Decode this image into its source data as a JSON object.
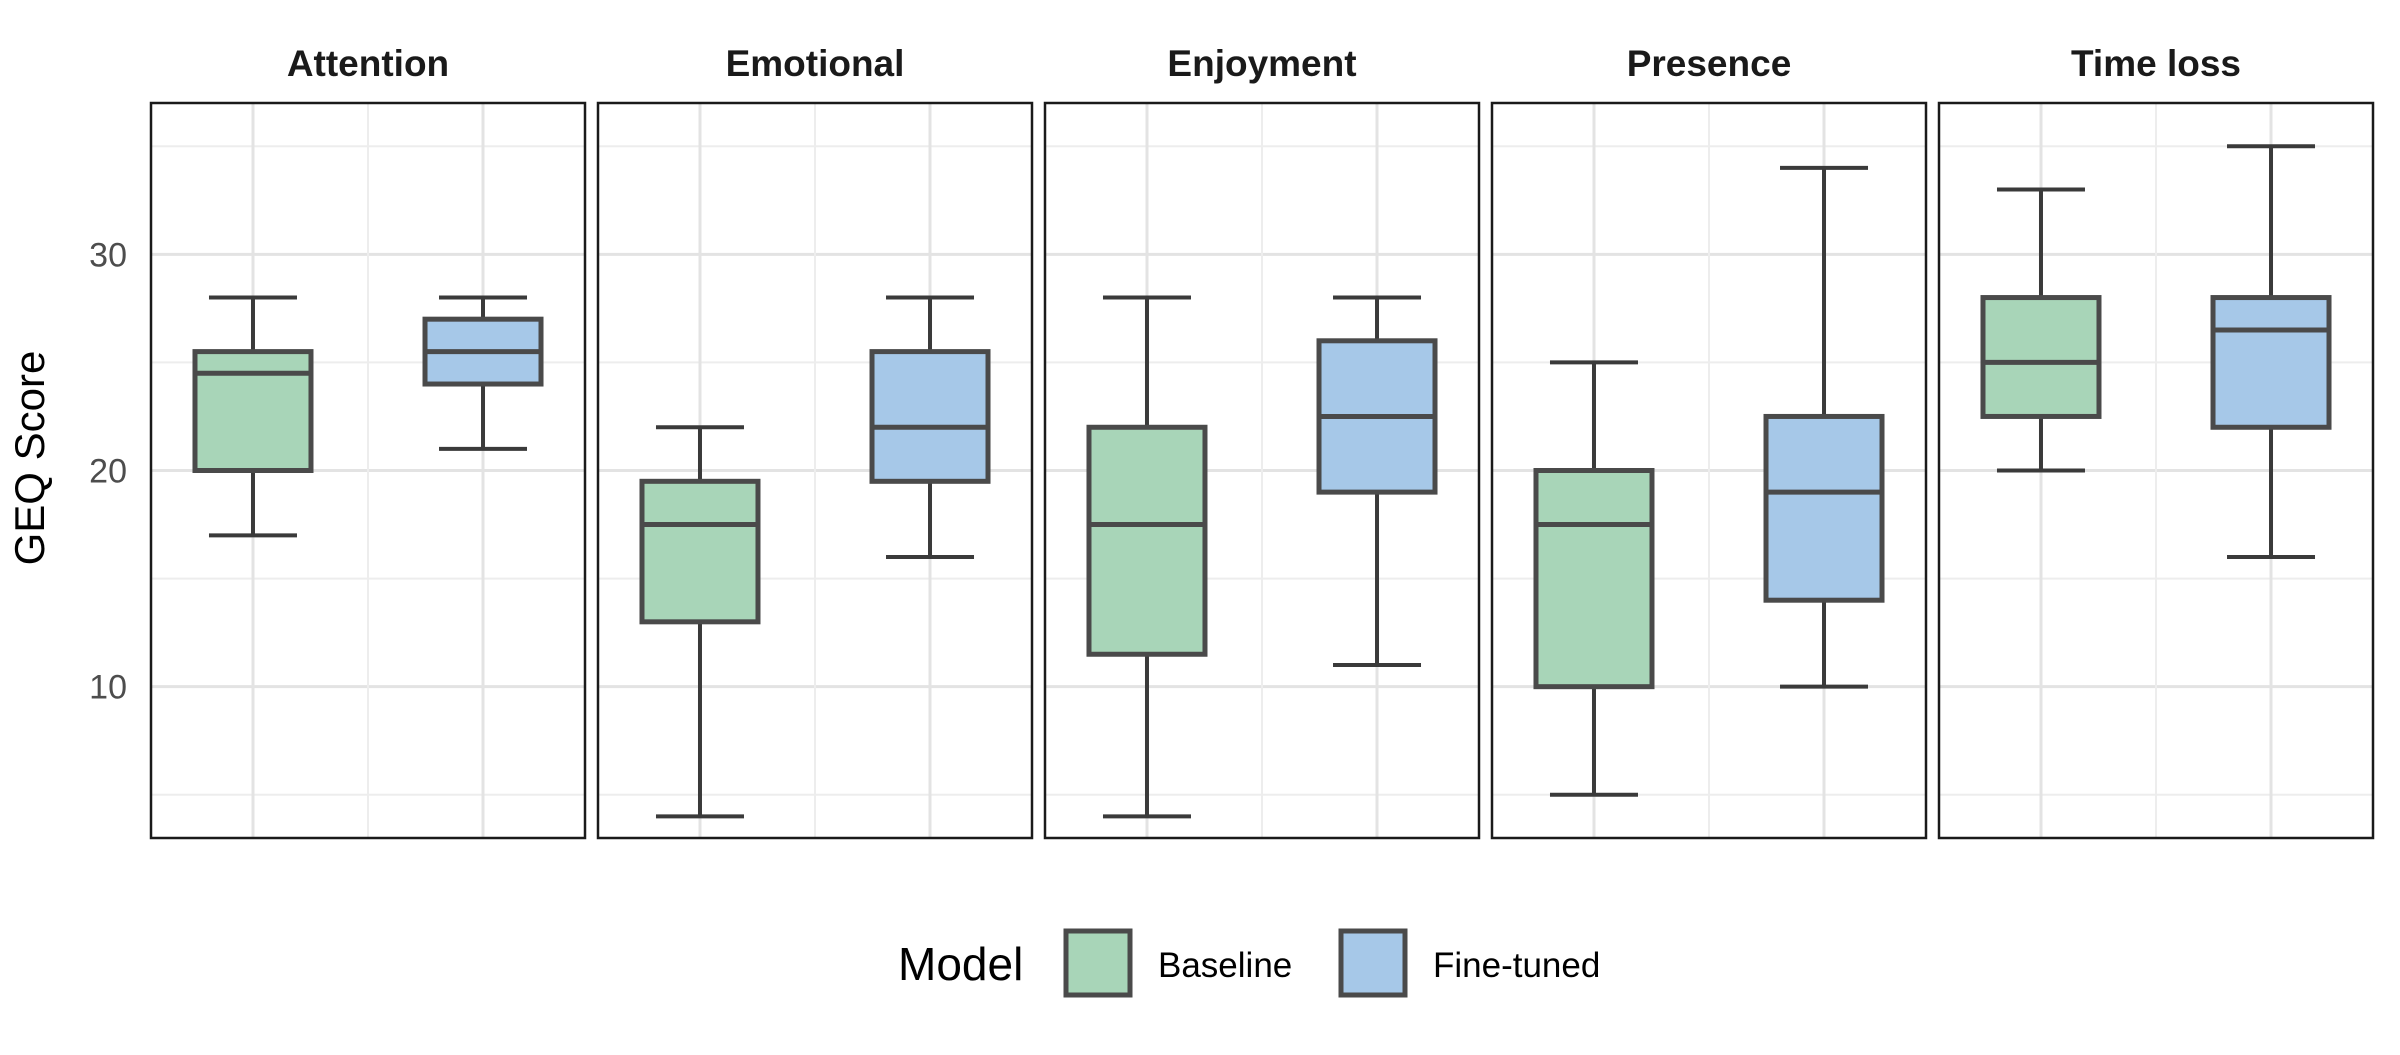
{
  "chart_data": {
    "type": "boxplot",
    "facets": [
      "Attention",
      "Emotional",
      "Enjoyment",
      "Presence",
      "Time loss"
    ],
    "groups": [
      "Baseline",
      "Fine-tuned"
    ],
    "ylabel": "GEQ Score",
    "xlabel": "",
    "ylim": [
      3,
      37
    ],
    "y_ticks": [
      10,
      20,
      30
    ],
    "grid": true,
    "legend": {
      "title": "Model",
      "position": "bottom"
    },
    "colors": {
      "Baseline": "#a8d5b8",
      "Fine-tuned": "#a6c8e8",
      "outline": "#4a4a4a"
    },
    "boxes": [
      {
        "facet": "Attention",
        "group": "Baseline",
        "whisker_low": 17,
        "q1": 20,
        "median": 24.5,
        "q3": 25.5,
        "whisker_high": 28
      },
      {
        "facet": "Attention",
        "group": "Fine-tuned",
        "whisker_low": 21,
        "q1": 24,
        "median": 25.5,
        "q3": 27,
        "whisker_high": 28
      },
      {
        "facet": "Emotional",
        "group": "Baseline",
        "whisker_low": 4,
        "q1": 13,
        "median": 17.5,
        "q3": 19.5,
        "whisker_high": 22
      },
      {
        "facet": "Emotional",
        "group": "Fine-tuned",
        "whisker_low": 16,
        "q1": 19.5,
        "median": 22,
        "q3": 25.5,
        "whisker_high": 28
      },
      {
        "facet": "Enjoyment",
        "group": "Baseline",
        "whisker_low": 4,
        "q1": 11.5,
        "median": 17.5,
        "q3": 22,
        "whisker_high": 28
      },
      {
        "facet": "Enjoyment",
        "group": "Fine-tuned",
        "whisker_low": 11,
        "q1": 19,
        "median": 22.5,
        "q3": 26,
        "whisker_high": 28
      },
      {
        "facet": "Presence",
        "group": "Baseline",
        "whisker_low": 5,
        "q1": 10,
        "median": 17.5,
        "q3": 20,
        "whisker_high": 25
      },
      {
        "facet": "Presence",
        "group": "Fine-tuned",
        "whisker_low": 10,
        "q1": 14,
        "median": 19,
        "q3": 22.5,
        "whisker_high": 34
      },
      {
        "facet": "Time loss",
        "group": "Baseline",
        "whisker_low": 20,
        "q1": 22.5,
        "median": 25,
        "q3": 28,
        "whisker_high": 33
      },
      {
        "facet": "Time loss",
        "group": "Fine-tuned",
        "whisker_low": 16,
        "q1": 22,
        "median": 26.5,
        "q3": 28,
        "whisker_high": 35
      }
    ]
  }
}
